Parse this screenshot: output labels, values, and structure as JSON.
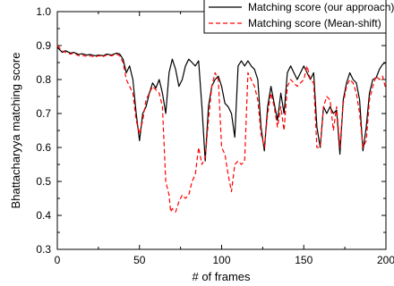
{
  "chart_data": {
    "type": "line",
    "xlabel": "# of frames",
    "ylabel": "Bhattacharyya matching score",
    "xlim": [
      0,
      200
    ],
    "ylim": [
      0.3,
      1.0
    ],
    "xticks": [
      0,
      50,
      100,
      150,
      200
    ],
    "yticks": [
      0.3,
      0.4,
      0.5,
      0.6,
      0.7,
      0.8,
      0.9,
      1.0
    ],
    "xtick_labels": [
      "0",
      "50",
      "100",
      "150",
      "200"
    ],
    "ytick_labels": [
      "0.3",
      "0.4",
      "0.5",
      "0.6",
      "0.7",
      "0.8",
      "0.9",
      "1.0"
    ],
    "grid": false,
    "legend_position": "top-right",
    "series": [
      {
        "name": "Matching score (our approach)",
        "color": "#000000",
        "style": "solid",
        "points": [
          [
            0,
            0.895
          ],
          [
            3,
            0.88
          ],
          [
            5,
            0.885
          ],
          [
            8,
            0.878
          ],
          [
            10,
            0.88
          ],
          [
            13,
            0.874
          ],
          [
            15,
            0.876
          ],
          [
            18,
            0.872
          ],
          [
            20,
            0.874
          ],
          [
            23,
            0.87
          ],
          [
            25,
            0.872
          ],
          [
            28,
            0.87
          ],
          [
            30,
            0.875
          ],
          [
            33,
            0.872
          ],
          [
            36,
            0.878
          ],
          [
            38,
            0.875
          ],
          [
            40,
            0.86
          ],
          [
            42,
            0.82
          ],
          [
            44,
            0.84
          ],
          [
            46,
            0.8
          ],
          [
            48,
            0.7
          ],
          [
            50,
            0.62
          ],
          [
            52,
            0.7
          ],
          [
            54,
            0.72
          ],
          [
            56,
            0.76
          ],
          [
            58,
            0.79
          ],
          [
            60,
            0.775
          ],
          [
            62,
            0.8
          ],
          [
            64,
            0.76
          ],
          [
            66,
            0.7
          ],
          [
            68,
            0.82
          ],
          [
            70,
            0.86
          ],
          [
            72,
            0.83
          ],
          [
            74,
            0.78
          ],
          [
            76,
            0.8
          ],
          [
            78,
            0.84
          ],
          [
            80,
            0.86
          ],
          [
            82,
            0.85
          ],
          [
            84,
            0.84
          ],
          [
            86,
            0.855
          ],
          [
            88,
            0.72
          ],
          [
            90,
            0.56
          ],
          [
            92,
            0.72
          ],
          [
            94,
            0.78
          ],
          [
            96,
            0.8
          ],
          [
            98,
            0.81
          ],
          [
            100,
            0.78
          ],
          [
            102,
            0.73
          ],
          [
            104,
            0.72
          ],
          [
            106,
            0.7
          ],
          [
            108,
            0.63
          ],
          [
            110,
            0.84
          ],
          [
            112,
            0.855
          ],
          [
            114,
            0.84
          ],
          [
            116,
            0.855
          ],
          [
            118,
            0.84
          ],
          [
            120,
            0.83
          ],
          [
            122,
            0.8
          ],
          [
            124,
            0.66
          ],
          [
            126,
            0.59
          ],
          [
            128,
            0.72
          ],
          [
            130,
            0.78
          ],
          [
            132,
            0.73
          ],
          [
            134,
            0.68
          ],
          [
            136,
            0.76
          ],
          [
            138,
            0.7
          ],
          [
            140,
            0.82
          ],
          [
            142,
            0.84
          ],
          [
            144,
            0.82
          ],
          [
            146,
            0.8
          ],
          [
            148,
            0.82
          ],
          [
            150,
            0.84
          ],
          [
            152,
            0.82
          ],
          [
            154,
            0.8
          ],
          [
            156,
            0.82
          ],
          [
            158,
            0.66
          ],
          [
            160,
            0.6
          ],
          [
            162,
            0.72
          ],
          [
            164,
            0.7
          ],
          [
            166,
            0.72
          ],
          [
            168,
            0.7
          ],
          [
            170,
            0.71
          ],
          [
            172,
            0.58
          ],
          [
            174,
            0.74
          ],
          [
            176,
            0.79
          ],
          [
            178,
            0.82
          ],
          [
            180,
            0.8
          ],
          [
            182,
            0.79
          ],
          [
            184,
            0.74
          ],
          [
            186,
            0.59
          ],
          [
            188,
            0.66
          ],
          [
            190,
            0.76
          ],
          [
            192,
            0.8
          ],
          [
            194,
            0.805
          ],
          [
            196,
            0.83
          ],
          [
            198,
            0.845
          ],
          [
            200,
            0.85
          ]
        ]
      },
      {
        "name": "Matching score (Mean-shift)",
        "color": "#ff0000",
        "style": "dashed",
        "points": [
          [
            0,
            0.9
          ],
          [
            3,
            0.885
          ],
          [
            5,
            0.88
          ],
          [
            8,
            0.875
          ],
          [
            10,
            0.878
          ],
          [
            13,
            0.87
          ],
          [
            15,
            0.872
          ],
          [
            18,
            0.868
          ],
          [
            20,
            0.87
          ],
          [
            23,
            0.866
          ],
          [
            25,
            0.87
          ],
          [
            28,
            0.868
          ],
          [
            30,
            0.872
          ],
          [
            33,
            0.87
          ],
          [
            36,
            0.875
          ],
          [
            38,
            0.87
          ],
          [
            40,
            0.85
          ],
          [
            42,
            0.8
          ],
          [
            44,
            0.78
          ],
          [
            46,
            0.76
          ],
          [
            48,
            0.68
          ],
          [
            50,
            0.64
          ],
          [
            52,
            0.68
          ],
          [
            54,
            0.74
          ],
          [
            56,
            0.76
          ],
          [
            58,
            0.78
          ],
          [
            60,
            0.77
          ],
          [
            62,
            0.76
          ],
          [
            64,
            0.72
          ],
          [
            66,
            0.5
          ],
          [
            68,
            0.46
          ],
          [
            69,
            0.41
          ],
          [
            70,
            0.42
          ],
          [
            72,
            0.41
          ],
          [
            74,
            0.44
          ],
          [
            76,
            0.46
          ],
          [
            78,
            0.45
          ],
          [
            80,
            0.46
          ],
          [
            82,
            0.5
          ],
          [
            84,
            0.52
          ],
          [
            86,
            0.6
          ],
          [
            88,
            0.55
          ],
          [
            90,
            0.57
          ],
          [
            92,
            0.68
          ],
          [
            94,
            0.78
          ],
          [
            96,
            0.82
          ],
          [
            98,
            0.8
          ],
          [
            100,
            0.6
          ],
          [
            102,
            0.58
          ],
          [
            104,
            0.52
          ],
          [
            106,
            0.47
          ],
          [
            108,
            0.55
          ],
          [
            110,
            0.56
          ],
          [
            112,
            0.55
          ],
          [
            114,
            0.56
          ],
          [
            116,
            0.82
          ],
          [
            118,
            0.8
          ],
          [
            120,
            0.78
          ],
          [
            122,
            0.74
          ],
          [
            124,
            0.64
          ],
          [
            126,
            0.6
          ],
          [
            128,
            0.7
          ],
          [
            130,
            0.76
          ],
          [
            132,
            0.72
          ],
          [
            134,
            0.66
          ],
          [
            136,
            0.72
          ],
          [
            138,
            0.65
          ],
          [
            140,
            0.78
          ],
          [
            142,
            0.8
          ],
          [
            144,
            0.79
          ],
          [
            146,
            0.78
          ],
          [
            148,
            0.79
          ],
          [
            150,
            0.8
          ],
          [
            152,
            0.84
          ],
          [
            154,
            0.8
          ],
          [
            156,
            0.79
          ],
          [
            158,
            0.6
          ],
          [
            160,
            0.6
          ],
          [
            162,
            0.72
          ],
          [
            164,
            0.75
          ],
          [
            166,
            0.74
          ],
          [
            168,
            0.65
          ],
          [
            170,
            0.72
          ],
          [
            172,
            0.6
          ],
          [
            174,
            0.73
          ],
          [
            176,
            0.78
          ],
          [
            178,
            0.8
          ],
          [
            180,
            0.79
          ],
          [
            182,
            0.76
          ],
          [
            184,
            0.7
          ],
          [
            186,
            0.6
          ],
          [
            188,
            0.62
          ],
          [
            190,
            0.74
          ],
          [
            192,
            0.78
          ],
          [
            194,
            0.81
          ],
          [
            196,
            0.8
          ],
          [
            198,
            0.81
          ],
          [
            200,
            0.77
          ]
        ]
      }
    ]
  }
}
